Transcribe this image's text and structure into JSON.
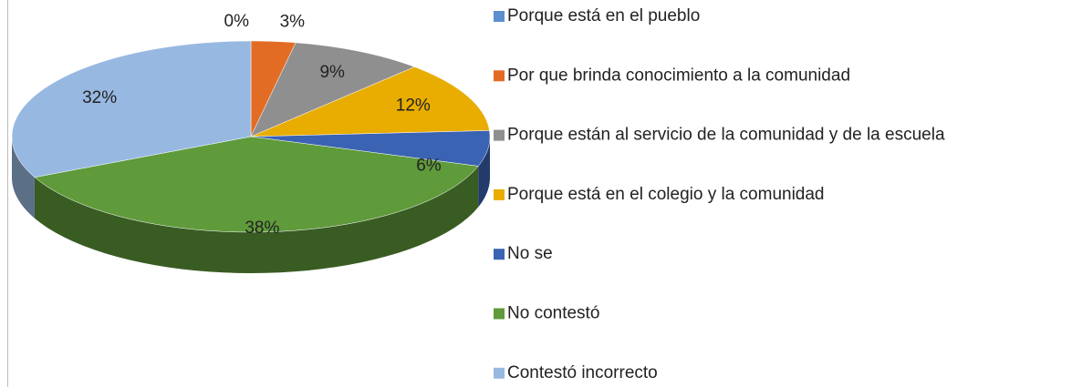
{
  "chart_data": {
    "type": "pie",
    "categories": [
      "Porque está en el pueblo",
      "Por que brinda conocimiento a la comunidad",
      "Porque están al servicio de la comunidad y de la escuela",
      "Porque está en el colegio y la comunidad",
      "No se",
      "No contestó",
      "Contestó incorrecto"
    ],
    "values": [
      0,
      3,
      9,
      12,
      6,
      38,
      32
    ],
    "value_labels": [
      "0%",
      "3%",
      "9%",
      "12%",
      "6%",
      "38%",
      "32%"
    ],
    "colors": [
      "#5b8fd0",
      "#e36c24",
      "#8f8f8f",
      "#e8ad00",
      "#3b63b3",
      "#5f9a3b",
      "#97b9e1"
    ],
    "legend": "right"
  }
}
